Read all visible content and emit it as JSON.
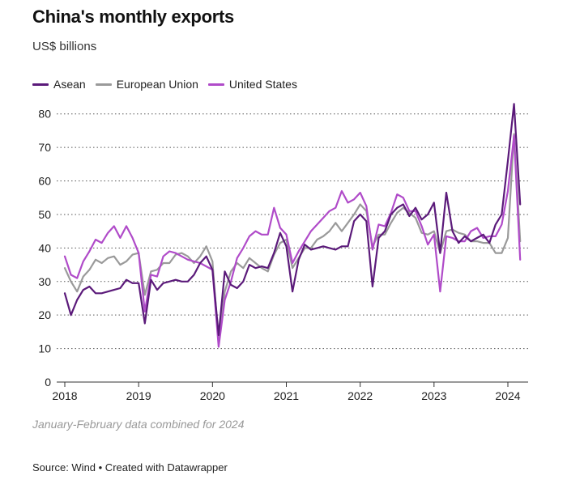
{
  "title": "China's monthly exports",
  "subtitle": "US$ billions",
  "note": "January-February data combined for 2024",
  "footer": "Source: Wind • Created with Datawrapper",
  "chart_data": {
    "type": "line",
    "title": "China's monthly exports",
    "subtitle": "US$ billions",
    "xlabel": "",
    "ylabel": "",
    "ylim": [
      0,
      85
    ],
    "yticks": [
      0,
      10,
      20,
      30,
      40,
      50,
      60,
      70,
      80
    ],
    "xticks": [
      "2018",
      "2019",
      "2020",
      "2021",
      "2022",
      "2023",
      "2024"
    ],
    "grid": true,
    "legend": "top-left",
    "x": [
      "2018-01",
      "2018-02",
      "2018-03",
      "2018-04",
      "2018-05",
      "2018-06",
      "2018-07",
      "2018-08",
      "2018-09",
      "2018-10",
      "2018-11",
      "2018-12",
      "2019-01",
      "2019-02",
      "2019-03",
      "2019-04",
      "2019-05",
      "2019-06",
      "2019-07",
      "2019-08",
      "2019-09",
      "2019-10",
      "2019-11",
      "2019-12",
      "2020-01",
      "2020-02",
      "2020-03",
      "2020-04",
      "2020-05",
      "2020-06",
      "2020-07",
      "2020-08",
      "2020-09",
      "2020-10",
      "2020-11",
      "2020-12",
      "2021-01",
      "2021-02",
      "2021-03",
      "2021-04",
      "2021-05",
      "2021-06",
      "2021-07",
      "2021-08",
      "2021-09",
      "2021-10",
      "2021-11",
      "2021-12",
      "2022-01",
      "2022-02",
      "2022-03",
      "2022-04",
      "2022-05",
      "2022-06",
      "2022-07",
      "2022-08",
      "2022-09",
      "2022-10",
      "2022-11",
      "2022-12",
      "2023-01",
      "2023-02",
      "2023-03",
      "2023-04",
      "2023-05",
      "2023-06",
      "2023-07",
      "2023-08",
      "2023-09",
      "2023-10",
      "2023-11",
      "2023-12",
      "2024-01",
      "2024-02",
      "2024-03"
    ],
    "series": [
      {
        "name": "Asean",
        "color": "#5b1a7a",
        "values": [
          26.5,
          20,
          24.5,
          27.5,
          28.5,
          26.5,
          26.5,
          27,
          27.5,
          28,
          30.5,
          29.5,
          29.5,
          17.5,
          30.5,
          27.5,
          29.5,
          30,
          30.5,
          30,
          30,
          32,
          35.5,
          37.5,
          33.5,
          14,
          33,
          29,
          28,
          30,
          35,
          34,
          34.5,
          34,
          38.5,
          44.5,
          40.5,
          27,
          36.5,
          41,
          39.5,
          40,
          40.5,
          40,
          39.5,
          40.5,
          40.5,
          48,
          50,
          48,
          28.5,
          43,
          45,
          50,
          52,
          53,
          49.5,
          52,
          48.5,
          50,
          53.5,
          38.5,
          56.5,
          45,
          41.5,
          43.5,
          42,
          43,
          44,
          41.5,
          47,
          50,
          66,
          83,
          53
        ]
      },
      {
        "name": "European Union",
        "color": "#9a9a9a",
        "values": [
          34,
          30,
          27,
          31.5,
          33.5,
          36.5,
          35.5,
          37,
          37.5,
          35,
          36,
          38,
          38.5,
          26,
          33,
          33.5,
          35.5,
          35.5,
          38,
          38.5,
          37.5,
          35.5,
          37.5,
          40.5,
          36,
          11.5,
          27,
          33,
          35.5,
          34,
          37,
          35.5,
          34,
          33,
          38,
          41.5,
          42.5,
          34,
          37,
          40,
          40,
          42.5,
          43.5,
          45,
          47.5,
          45,
          47.5,
          50,
          53,
          51,
          40.5,
          44,
          44,
          47.5,
          50.5,
          52,
          50.5,
          49,
          44.5,
          44,
          45,
          38.5,
          45,
          45.5,
          44.5,
          44,
          42,
          42,
          41.5,
          41.5,
          38.5,
          38.5,
          43,
          74,
          42
        ]
      },
      {
        "name": "United States",
        "color": "#b04bc9",
        "values": [
          37.5,
          32,
          31,
          36,
          39,
          42.5,
          41.5,
          44.5,
          46.5,
          43,
          46.5,
          43,
          38.5,
          21,
          32,
          31.5,
          37.5,
          39,
          38.5,
          37.5,
          36.5,
          36,
          35.5,
          34.5,
          33.5,
          10.5,
          24.5,
          30,
          37,
          40,
          43.5,
          45,
          44,
          44,
          52,
          46,
          44,
          35.5,
          39,
          42,
          45,
          47,
          49,
          51,
          52,
          57,
          53.5,
          54.5,
          56.5,
          52.5,
          39.5,
          47,
          46.5,
          50.5,
          56,
          55,
          51,
          51,
          46.5,
          41,
          44,
          27,
          43.5,
          43,
          42,
          42,
          45,
          46,
          43,
          43.5,
          43.5,
          47,
          57,
          73.5,
          36.5
        ]
      }
    ]
  }
}
